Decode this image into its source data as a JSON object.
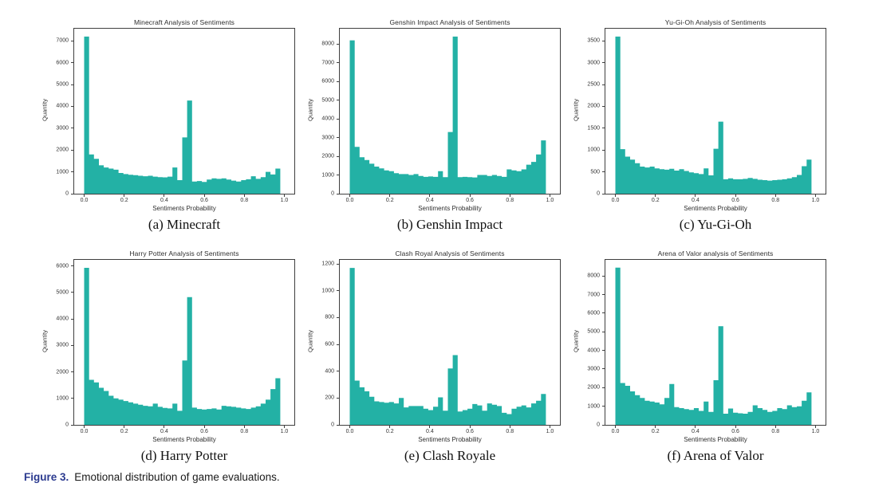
{
  "figure_caption": {
    "label": "Figure 3.",
    "text": "Emotional distribution of game evaluations."
  },
  "colors": {
    "bar": "#23b1a5",
    "axis": "#3f3f3f",
    "caption_label_blue": "#2b3a8f",
    "text": "#2e2e2e"
  },
  "chart_data": [
    {
      "type": "bar",
      "title": "Minecraft Analysis of Sentiments",
      "xlabel": "Sentiments Probability",
      "ylabel": "Quantity",
      "caption": "(a) Minecraft",
      "legend": "none",
      "grid": false,
      "xlim": [
        -0.05,
        1.05
      ],
      "ylim": [
        0,
        7560
      ],
      "yticks": [
        0,
        1000,
        2000,
        3000,
        4000,
        5000,
        6000,
        7000
      ],
      "xticks": [
        0.0,
        0.2,
        0.4,
        0.6,
        0.8,
        1.0
      ],
      "bin_start": 0.0,
      "bin_width": 0.0245,
      "values": [
        7200,
        1800,
        1600,
        1300,
        1200,
        1150,
        1100,
        950,
        900,
        870,
        850,
        820,
        800,
        820,
        780,
        760,
        750,
        780,
        1200,
        620,
        2580,
        4270,
        560,
        580,
        540,
        650,
        700,
        680,
        700,
        650,
        600,
        560,
        620,
        660,
        800,
        680,
        760,
        1000,
        880,
        1150
      ]
    },
    {
      "type": "bar",
      "title": "Genshin Impact Analysis of Sentiments",
      "xlabel": "Sentiments Probability",
      "ylabel": "Quantity",
      "caption": "(b) Genshin Impact",
      "legend": "none",
      "grid": false,
      "xlim": [
        -0.05,
        1.05
      ],
      "ylim": [
        0,
        8820
      ],
      "yticks": [
        0,
        1000,
        2000,
        3000,
        4000,
        5000,
        6000,
        7000,
        8000
      ],
      "xticks": [
        0.0,
        0.2,
        0.4,
        0.6,
        0.8,
        1.0
      ],
      "bin_start": 0.0,
      "bin_width": 0.0245,
      "values": [
        8200,
        2500,
        1950,
        1800,
        1600,
        1450,
        1350,
        1250,
        1200,
        1100,
        1050,
        1050,
        1000,
        1050,
        950,
        900,
        920,
        900,
        1200,
        880,
        3300,
        8400,
        880,
        900,
        880,
        870,
        1000,
        1000,
        950,
        1000,
        950,
        900,
        1300,
        1250,
        1200,
        1300,
        1550,
        1700,
        2100,
        2850
      ]
    },
    {
      "type": "bar",
      "title": "Yu-Gi-Oh Analysis of Sentiments",
      "xlabel": "Sentiments Probability",
      "ylabel": "Quantity",
      "caption": "(c) Yu-Gi-Oh",
      "legend": "none",
      "grid": false,
      "xlim": [
        -0.05,
        1.05
      ],
      "ylim": [
        0,
        3780
      ],
      "yticks": [
        0,
        500,
        1000,
        1500,
        2000,
        2500,
        3000,
        3500
      ],
      "xticks": [
        0.0,
        0.2,
        0.4,
        0.6,
        0.8,
        1.0
      ],
      "bin_start": 0.0,
      "bin_width": 0.0245,
      "values": [
        3600,
        1020,
        850,
        780,
        700,
        620,
        600,
        620,
        580,
        560,
        550,
        570,
        530,
        560,
        520,
        490,
        470,
        450,
        580,
        420,
        1030,
        1650,
        330,
        350,
        330,
        330,
        340,
        360,
        340,
        320,
        310,
        300,
        310,
        320,
        330,
        350,
        380,
        430,
        630,
        780
      ]
    },
    {
      "type": "bar",
      "title": "Harry Potter Analysis of Sentiments",
      "xlabel": "Sentiments Probability",
      "ylabel": "Quantity",
      "caption": "(d) Harry Potter",
      "legend": "none",
      "grid": false,
      "xlim": [
        -0.05,
        1.05
      ],
      "ylim": [
        0,
        6230
      ],
      "yticks": [
        0,
        1000,
        2000,
        3000,
        4000,
        5000,
        6000
      ],
      "xticks": [
        0.0,
        0.2,
        0.4,
        0.6,
        0.8,
        1.0
      ],
      "bin_start": 0.0,
      "bin_width": 0.0245,
      "values": [
        5930,
        1700,
        1600,
        1400,
        1280,
        1100,
        1000,
        950,
        900,
        850,
        800,
        760,
        720,
        700,
        800,
        680,
        640,
        620,
        800,
        530,
        2430,
        4820,
        650,
        600,
        580,
        600,
        620,
        580,
        720,
        700,
        680,
        650,
        620,
        600,
        650,
        700,
        800,
        950,
        1350,
        1760
      ]
    },
    {
      "type": "bar",
      "title": "Clash Royal Analysis of Sentiments",
      "xlabel": "Sentiments Probability",
      "ylabel": "Quantity",
      "caption": "(e) Clash Royale",
      "legend": "none",
      "grid": false,
      "xlim": [
        -0.05,
        1.05
      ],
      "ylim": [
        0,
        1230
      ],
      "yticks": [
        0,
        200,
        400,
        600,
        800,
        1000,
        1200
      ],
      "xticks": [
        0.0,
        0.2,
        0.4,
        0.6,
        0.8,
        1.0
      ],
      "bin_start": 0.0,
      "bin_width": 0.0245,
      "values": [
        1170,
        330,
        280,
        250,
        210,
        175,
        170,
        165,
        170,
        160,
        200,
        130,
        140,
        140,
        140,
        120,
        110,
        135,
        205,
        105,
        420,
        520,
        100,
        110,
        120,
        155,
        145,
        105,
        160,
        150,
        140,
        90,
        80,
        120,
        135,
        145,
        130,
        160,
        180,
        230
      ]
    },
    {
      "type": "bar",
      "title": "Arena of Valor analysis of Sentiments",
      "xlabel": "Sentiments Probability",
      "ylabel": "Quantity",
      "caption": "(f) Arena of Valor",
      "legend": "none",
      "grid": false,
      "xlim": [
        -0.05,
        1.05
      ],
      "ylim": [
        0,
        8870
      ],
      "yticks": [
        0,
        1000,
        2000,
        3000,
        4000,
        5000,
        6000,
        7000,
        8000
      ],
      "xticks": [
        0.0,
        0.2,
        0.4,
        0.6,
        0.8,
        1.0
      ],
      "bin_start": 0.0,
      "bin_width": 0.0245,
      "values": [
        8450,
        2250,
        2100,
        1800,
        1600,
        1450,
        1300,
        1250,
        1200,
        1100,
        1450,
        2200,
        950,
        900,
        850,
        800,
        900,
        750,
        1250,
        700,
        2400,
        5300,
        600,
        880,
        650,
        620,
        600,
        700,
        1050,
        900,
        800,
        700,
        750,
        900,
        850,
        1050,
        950,
        1000,
        1300,
        1750
      ]
    }
  ]
}
